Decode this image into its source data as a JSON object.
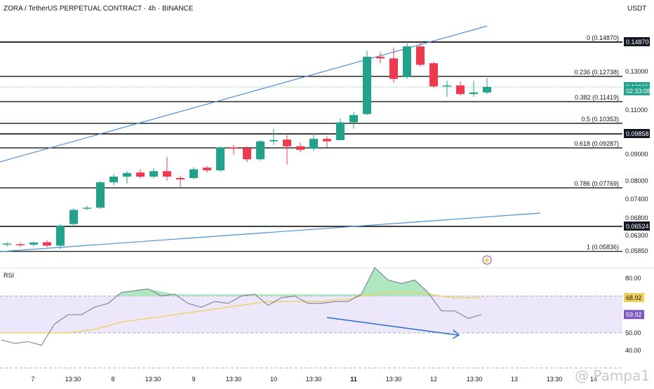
{
  "header": {
    "title": "ZORA / TetherUS PERPETUAL CONTRACT · 4h · BINANCE",
    "currency": "USDT"
  },
  "indicator": {
    "name": "RSI"
  },
  "watermark": "@ Pampa1",
  "colors": {
    "up": "#22a28a",
    "down": "#f0384f",
    "fib_line": "#000000",
    "trendline": "#4a90d9",
    "rsi_line": "#7a7e8c",
    "rsi_ma": "#f2cf5b",
    "rsi_band": "#ece7fb",
    "rsi_bear_fill": "#9be1b0",
    "divergence_arrow": "#2c6bd1",
    "lightning": "#8e44ad"
  },
  "chart_data": [
    {
      "type": "candlestick",
      "symbol": "ZORA/USDT",
      "timeframe": "4h",
      "ylim": [
        0.0575,
        0.155
      ],
      "x_ticks": [
        "7",
        "13:30",
        "8",
        "13:30",
        "9",
        "13:30",
        "10",
        "13:30",
        "11",
        "13:30",
        "12",
        "13:30",
        "13",
        "13:30",
        "14"
      ],
      "x_ticks_bold": [
        8
      ],
      "price_ticks": [
        "0.13000",
        "0.11000",
        "0.09000",
        "0.08000",
        "0.07400",
        "0.06800",
        "0.06300",
        "0.05850"
      ],
      "price_tick_values": [
        0.13,
        0.11,
        0.09,
        0.08,
        0.074,
        0.068,
        0.063,
        0.0585
      ],
      "price_labels": [
        {
          "text": "0.14870",
          "value": 0.1487,
          "style": "dark"
        },
        {
          "text": "0.09858",
          "value": 0.09858,
          "style": "dark"
        },
        {
          "text": "0.06524",
          "value": 0.06524,
          "style": "dark"
        },
        {
          "text": "0.12166",
          "value": 0.12166,
          "style": "last"
        },
        {
          "text": "02:33:08",
          "value": 0.1195,
          "style": "last"
        }
      ],
      "horizontal_levels": [
        0.1487,
        0.09858,
        0.06524
      ],
      "fib_levels": [
        {
          "label": "0 (0.14870)",
          "value": 0.1487
        },
        {
          "label": "0.236 (0.12738)",
          "value": 0.12738
        },
        {
          "label": "0.382 (0.11419)",
          "value": 0.11419
        },
        {
          "label": "0.5 (0.10353)",
          "value": 0.10353
        },
        {
          "label": "0.618 (0.09287)",
          "value": 0.09287
        },
        {
          "label": "0.786 (0.07769)",
          "value": 0.07769
        },
        {
          "label": "1 (0.05836)",
          "value": 0.05836
        }
      ],
      "candles": [
        {
          "o": 0.0604,
          "h": 0.061,
          "l": 0.0598,
          "c": 0.0606
        },
        {
          "o": 0.0604,
          "h": 0.0609,
          "l": 0.0596,
          "c": 0.0602
        },
        {
          "o": 0.0603,
          "h": 0.0612,
          "l": 0.0598,
          "c": 0.0609
        },
        {
          "o": 0.061,
          "h": 0.0616,
          "l": 0.0596,
          "c": 0.06
        },
        {
          "o": 0.06,
          "h": 0.066,
          "l": 0.059,
          "c": 0.0655
        },
        {
          "o": 0.066,
          "h": 0.071,
          "l": 0.065,
          "c": 0.0705
        },
        {
          "o": 0.071,
          "h": 0.0718,
          "l": 0.0705,
          "c": 0.0712
        },
        {
          "o": 0.0712,
          "h": 0.08,
          "l": 0.0708,
          "c": 0.0795
        },
        {
          "o": 0.0795,
          "h": 0.0825,
          "l": 0.0785,
          "c": 0.0815
        },
        {
          "o": 0.0815,
          "h": 0.0835,
          "l": 0.079,
          "c": 0.0828
        },
        {
          "o": 0.083,
          "h": 0.0842,
          "l": 0.0808,
          "c": 0.0815
        },
        {
          "o": 0.0815,
          "h": 0.0845,
          "l": 0.0808,
          "c": 0.0835
        },
        {
          "o": 0.0835,
          "h": 0.089,
          "l": 0.08,
          "c": 0.0815
        },
        {
          "o": 0.081,
          "h": 0.0818,
          "l": 0.078,
          "c": 0.0805
        },
        {
          "o": 0.081,
          "h": 0.085,
          "l": 0.0805,
          "c": 0.0842
        },
        {
          "o": 0.0848,
          "h": 0.0855,
          "l": 0.083,
          "c": 0.0838
        },
        {
          "o": 0.0838,
          "h": 0.0935,
          "l": 0.0832,
          "c": 0.093
        },
        {
          "o": 0.093,
          "h": 0.094,
          "l": 0.09,
          "c": 0.0925
        },
        {
          "o": 0.0928,
          "h": 0.0935,
          "l": 0.087,
          "c": 0.088
        },
        {
          "o": 0.088,
          "h": 0.096,
          "l": 0.0875,
          "c": 0.0955
        },
        {
          "o": 0.0955,
          "h": 0.101,
          "l": 0.094,
          "c": 0.096
        },
        {
          "o": 0.0962,
          "h": 0.098,
          "l": 0.086,
          "c": 0.0935
        },
        {
          "o": 0.0935,
          "h": 0.095,
          "l": 0.091,
          "c": 0.092
        },
        {
          "o": 0.0925,
          "h": 0.099,
          "l": 0.0915,
          "c": 0.0965
        },
        {
          "o": 0.0965,
          "h": 0.0975,
          "l": 0.093,
          "c": 0.0955
        },
        {
          "o": 0.096,
          "h": 0.106,
          "l": 0.096,
          "c": 0.104
        },
        {
          "o": 0.104,
          "h": 0.109,
          "l": 0.101,
          "c": 0.1075
        },
        {
          "o": 0.108,
          "h": 0.143,
          "l": 0.1075,
          "c": 0.139
        },
        {
          "o": 0.139,
          "h": 0.142,
          "l": 0.135,
          "c": 0.138
        },
        {
          "o": 0.138,
          "h": 0.145,
          "l": 0.124,
          "c": 0.126
        },
        {
          "o": 0.127,
          "h": 0.1478,
          "l": 0.126,
          "c": 0.1458
        },
        {
          "o": 0.1458,
          "h": 0.1487,
          "l": 0.133,
          "c": 0.134
        },
        {
          "o": 0.135,
          "h": 0.136,
          "l": 0.121,
          "c": 0.122
        },
        {
          "o": 0.1222,
          "h": 0.125,
          "l": 0.1165,
          "c": 0.1225
        },
        {
          "o": 0.1225,
          "h": 0.1245,
          "l": 0.1172,
          "c": 0.118
        },
        {
          "o": 0.118,
          "h": 0.125,
          "l": 0.1165,
          "c": 0.1188
        },
        {
          "o": 0.1188,
          "h": 0.1265,
          "l": 0.118,
          "c": 0.1217
        }
      ],
      "last_price": 0.12166
    },
    {
      "type": "line",
      "name": "RSI",
      "ylim": [
        30,
        90
      ],
      "y_ticks": [
        80.0,
        60.0,
        50.0,
        40.0
      ],
      "y_tick_labels": [
        "80.00",
        "60.00",
        "50.00",
        "40.00"
      ],
      "band": [
        50,
        70
      ],
      "value_labels": [
        {
          "text": "68.92",
          "value": 68.92,
          "style": "ma"
        },
        {
          "text": "59.92",
          "value": 59.92,
          "style": "rsi"
        }
      ],
      "series": [
        {
          "key": "rsi",
          "values": [
            46,
            44,
            45,
            43,
            55,
            60,
            60,
            64,
            66,
            72,
            73,
            74,
            70,
            71,
            66,
            64,
            67,
            66,
            70,
            71,
            65,
            69,
            70,
            66,
            66,
            67,
            67,
            71,
            86,
            79,
            77,
            79,
            72,
            62,
            62,
            58,
            60
          ]
        },
        {
          "key": "rsi_ma",
          "values": [
            50,
            50,
            50,
            50,
            50,
            50,
            51,
            52,
            54,
            56,
            57,
            58,
            59,
            60,
            61,
            62,
            63,
            64,
            65,
            66,
            67,
            67,
            67,
            67,
            67,
            68,
            68,
            70,
            71,
            72,
            72,
            72,
            71,
            70,
            69,
            69,
            69
          ]
        }
      ]
    }
  ]
}
